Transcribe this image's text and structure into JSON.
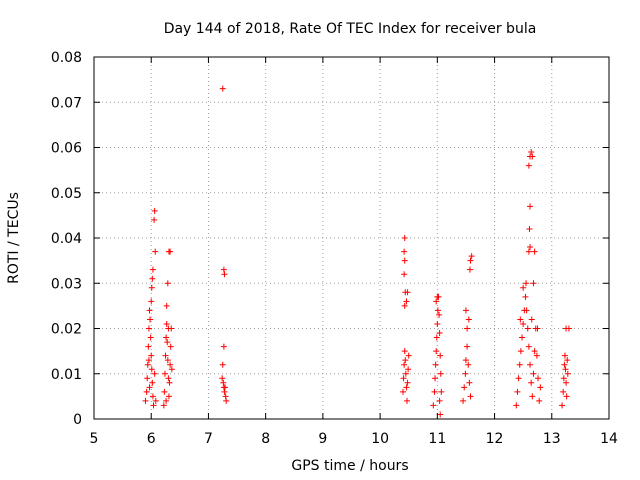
{
  "chart_data": {
    "type": "scatter",
    "title": "Day 144 of 2018, Rate Of TEC Index for receiver bula",
    "xlabel": "GPS time / hours",
    "ylabel": "ROTI / TECUs",
    "xlim": [
      5,
      14
    ],
    "ylim": [
      0,
      0.08
    ],
    "xticks": [
      5,
      6,
      7,
      8,
      9,
      10,
      11,
      12,
      13,
      14
    ],
    "xtick_labels": [
      "5",
      "6",
      "7",
      "8",
      "9",
      "10",
      "11",
      "12",
      "13",
      "14"
    ],
    "yticks": [
      0,
      0.01,
      0.02,
      0.03,
      0.04,
      0.05,
      0.06,
      0.07,
      0.08
    ],
    "ytick_labels": [
      "0",
      "0.01",
      "0.02",
      "0.03",
      "0.04",
      "0.05",
      "0.06",
      "0.07",
      "0.08"
    ],
    "grid": true,
    "marker": "+",
    "marker_color": "#ff0000",
    "series": [
      {
        "name": "ROTI",
        "points": [
          [
            5.9,
            0.004
          ],
          [
            5.92,
            0.006
          ],
          [
            5.93,
            0.009
          ],
          [
            5.94,
            0.012
          ],
          [
            5.95,
            0.016
          ],
          [
            5.96,
            0.02
          ],
          [
            5.97,
            0.024
          ],
          [
            5.98,
            0.022
          ],
          [
            5.99,
            0.018
          ],
          [
            6.0,
            0.014
          ],
          [
            6.01,
            0.011
          ],
          [
            6.02,
            0.008
          ],
          [
            6.03,
            0.005
          ],
          [
            6.04,
            0.003
          ],
          [
            6.0,
            0.026
          ],
          [
            6.01,
            0.029
          ],
          [
            6.02,
            0.031
          ],
          [
            6.03,
            0.033
          ],
          [
            5.96,
            0.013
          ],
          [
            5.97,
            0.007
          ],
          [
            6.05,
            0.044
          ],
          [
            6.06,
            0.046
          ],
          [
            6.07,
            0.037
          ],
          [
            6.08,
            0.004
          ],
          [
            6.06,
            0.01
          ],
          [
            6.22,
            0.003
          ],
          [
            6.23,
            0.006
          ],
          [
            6.24,
            0.01
          ],
          [
            6.25,
            0.014
          ],
          [
            6.26,
            0.018
          ],
          [
            6.27,
            0.021
          ],
          [
            6.28,
            0.017
          ],
          [
            6.29,
            0.013
          ],
          [
            6.3,
            0.009
          ],
          [
            6.31,
            0.005
          ],
          [
            6.32,
            0.008
          ],
          [
            6.33,
            0.012
          ],
          [
            6.34,
            0.016
          ],
          [
            6.35,
            0.02
          ],
          [
            6.36,
            0.011
          ],
          [
            6.27,
            0.025
          ],
          [
            6.29,
            0.03
          ],
          [
            6.31,
            0.037
          ],
          [
            6.33,
            0.037
          ],
          [
            6.26,
            0.004
          ],
          [
            6.3,
            0.02
          ],
          [
            7.25,
            0.073
          ],
          [
            7.27,
            0.033
          ],
          [
            7.28,
            0.032
          ],
          [
            7.27,
            0.016
          ],
          [
            7.25,
            0.012
          ],
          [
            7.24,
            0.009
          ],
          [
            7.26,
            0.008
          ],
          [
            7.27,
            0.007
          ],
          [
            7.28,
            0.006
          ],
          [
            7.3,
            0.005
          ],
          [
            7.31,
            0.004
          ],
          [
            7.29,
            0.007
          ],
          [
            10.4,
            0.006
          ],
          [
            10.41,
            0.009
          ],
          [
            10.42,
            0.012
          ],
          [
            10.43,
            0.015
          ],
          [
            10.44,
            0.013
          ],
          [
            10.45,
            0.01
          ],
          [
            10.46,
            0.007
          ],
          [
            10.47,
            0.004
          ],
          [
            10.48,
            0.008
          ],
          [
            10.49,
            0.011
          ],
          [
            10.5,
            0.014
          ],
          [
            10.43,
            0.025
          ],
          [
            10.44,
            0.028
          ],
          [
            10.46,
            0.026
          ],
          [
            10.42,
            0.032
          ],
          [
            10.43,
            0.035
          ],
          [
            10.42,
            0.037
          ],
          [
            10.43,
            0.04
          ],
          [
            10.48,
            0.028
          ],
          [
            10.93,
            0.003
          ],
          [
            10.95,
            0.006
          ],
          [
            10.96,
            0.009
          ],
          [
            10.97,
            0.012
          ],
          [
            10.98,
            0.015
          ],
          [
            10.99,
            0.018
          ],
          [
            11.0,
            0.021
          ],
          [
            11.01,
            0.024
          ],
          [
            11.02,
            0.027
          ],
          [
            11.03,
            0.023
          ],
          [
            11.04,
            0.019
          ],
          [
            11.05,
            0.014
          ],
          [
            11.06,
            0.01
          ],
          [
            11.07,
            0.006
          ],
          [
            11.05,
            0.001
          ],
          [
            11.04,
            0.004
          ],
          [
            11.0,
            0.027
          ],
          [
            10.98,
            0.026
          ],
          [
            11.45,
            0.004
          ],
          [
            11.47,
            0.007
          ],
          [
            11.49,
            0.01
          ],
          [
            11.5,
            0.013
          ],
          [
            11.52,
            0.016
          ],
          [
            11.54,
            0.012
          ],
          [
            11.56,
            0.008
          ],
          [
            11.58,
            0.005
          ],
          [
            11.5,
            0.024
          ],
          [
            11.52,
            0.02
          ],
          [
            11.55,
            0.022
          ],
          [
            11.57,
            0.033
          ],
          [
            11.58,
            0.035
          ],
          [
            11.6,
            0.036
          ],
          [
            12.38,
            0.003
          ],
          [
            12.4,
            0.006
          ],
          [
            12.42,
            0.009
          ],
          [
            12.44,
            0.012
          ],
          [
            12.46,
            0.015
          ],
          [
            12.48,
            0.018
          ],
          [
            12.5,
            0.021
          ],
          [
            12.52,
            0.024
          ],
          [
            12.54,
            0.027
          ],
          [
            12.56,
            0.024
          ],
          [
            12.58,
            0.02
          ],
          [
            12.6,
            0.016
          ],
          [
            12.62,
            0.012
          ],
          [
            12.64,
            0.008
          ],
          [
            12.66,
            0.005
          ],
          [
            12.68,
            0.01
          ],
          [
            12.7,
            0.015
          ],
          [
            12.72,
            0.02
          ],
          [
            12.74,
            0.014
          ],
          [
            12.76,
            0.009
          ],
          [
            12.78,
            0.004
          ],
          [
            12.8,
            0.007
          ],
          [
            12.5,
            0.029
          ],
          [
            12.55,
            0.03
          ],
          [
            12.6,
            0.037
          ],
          [
            12.62,
            0.038
          ],
          [
            12.61,
            0.042
          ],
          [
            12.62,
            0.047
          ],
          [
            12.6,
            0.056
          ],
          [
            12.62,
            0.058
          ],
          [
            12.64,
            0.059
          ],
          [
            12.66,
            0.058
          ],
          [
            12.68,
            0.03
          ],
          [
            12.45,
            0.022
          ],
          [
            12.65,
            0.022
          ],
          [
            12.75,
            0.02
          ],
          [
            12.7,
            0.037
          ],
          [
            13.18,
            0.003
          ],
          [
            13.2,
            0.006
          ],
          [
            13.21,
            0.009
          ],
          [
            13.22,
            0.012
          ],
          [
            13.23,
            0.014
          ],
          [
            13.24,
            0.011
          ],
          [
            13.25,
            0.008
          ],
          [
            13.26,
            0.005
          ],
          [
            13.27,
            0.013
          ],
          [
            13.28,
            0.01
          ],
          [
            13.25,
            0.02
          ],
          [
            13.3,
            0.02
          ]
        ]
      }
    ]
  }
}
